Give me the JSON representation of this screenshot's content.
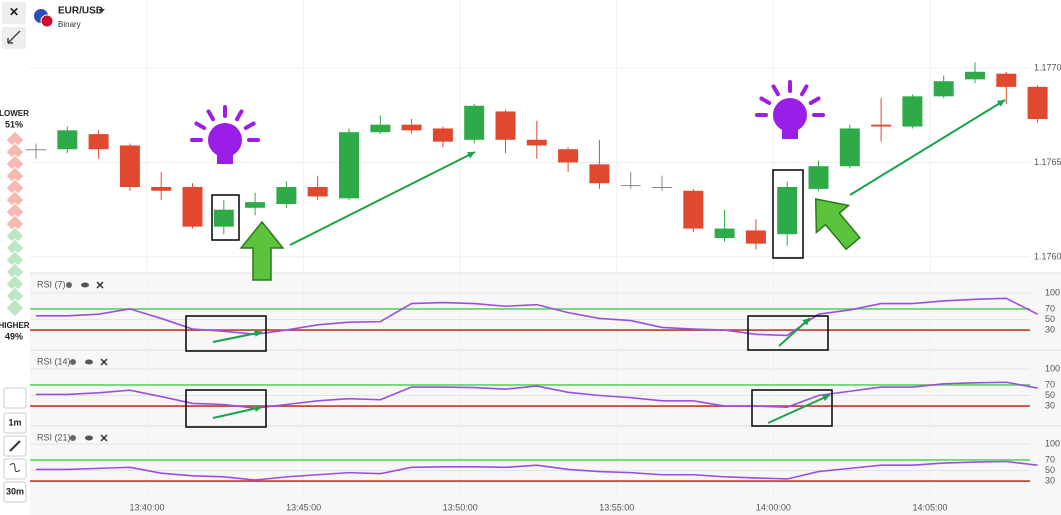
{
  "header": {
    "symbol": "EUR/USD",
    "mode": "Binary"
  },
  "sidebar": {
    "lower_label": "LOWER",
    "lower_pct": "51%",
    "higher_label": "HIGHER",
    "higher_pct": "49%",
    "tools": [
      "1m",
      "30m"
    ]
  },
  "price_chart": {
    "type": "candlestick",
    "up_color": "#2eaa48",
    "down_color": "#e0492f",
    "ylim": [
      1.17592,
      1.17736
    ],
    "yticks": [
      {
        "value": 1.177,
        "label": "1.1770"
      },
      1.1765,
      {
        "value": 1.176,
        "label": "1.1760"
      }
    ],
    "xticks": [
      "13:40:00",
      "13:45:00",
      "13:50:00",
      "13:55:00",
      "14:00:00",
      "14:05:00"
    ],
    "candles": [
      {
        "open": 1.17657,
        "high": 1.1766,
        "low": 1.17652,
        "close": 1.17657
      },
      {
        "open": 1.17657,
        "high": 1.17669,
        "low": 1.17655,
        "close": 1.17667
      },
      {
        "open": 1.17665,
        "high": 1.17667,
        "low": 1.17652,
        "close": 1.17657
      },
      {
        "open": 1.17659,
        "high": 1.1766,
        "low": 1.17635,
        "close": 1.17637
      },
      {
        "open": 1.17637,
        "high": 1.17645,
        "low": 1.1763,
        "close": 1.17635
      },
      {
        "open": 1.17637,
        "high": 1.17639,
        "low": 1.17615,
        "close": 1.17616
      },
      {
        "open": 1.17616,
        "high": 1.1763,
        "low": 1.17612,
        "close": 1.17625
      },
      {
        "open": 1.17626,
        "high": 1.17634,
        "low": 1.17622,
        "close": 1.17629
      },
      {
        "open": 1.17628,
        "high": 1.1764,
        "low": 1.17626,
        "close": 1.17637
      },
      {
        "open": 1.17637,
        "high": 1.17643,
        "low": 1.1763,
        "close": 1.17632
      },
      {
        "open": 1.17631,
        "high": 1.17668,
        "low": 1.1763,
        "close": 1.17666
      },
      {
        "open": 1.17666,
        "high": 1.17675,
        "low": 1.17665,
        "close": 1.1767
      },
      {
        "open": 1.1767,
        "high": 1.17673,
        "low": 1.17665,
        "close": 1.17667
      },
      {
        "open": 1.17668,
        "high": 1.17669,
        "low": 1.17658,
        "close": 1.17661
      },
      {
        "open": 1.17662,
        "high": 1.17681,
        "low": 1.1766,
        "close": 1.1768
      },
      {
        "open": 1.17677,
        "high": 1.17678,
        "low": 1.17655,
        "close": 1.17662
      },
      {
        "open": 1.17662,
        "high": 1.17672,
        "low": 1.17652,
        "close": 1.17659
      },
      {
        "open": 1.17657,
        "high": 1.17658,
        "low": 1.17645,
        "close": 1.1765
      },
      {
        "open": 1.17649,
        "high": 1.17662,
        "low": 1.17636,
        "close": 1.17639
      },
      {
        "open": 1.17638,
        "high": 1.17645,
        "low": 1.17636,
        "close": 1.17638
      },
      {
        "open": 1.17637,
        "high": 1.17643,
        "low": 1.17635,
        "close": 1.17637
      },
      {
        "open": 1.17635,
        "high": 1.17636,
        "low": 1.17613,
        "close": 1.17615
      },
      {
        "open": 1.1761,
        "high": 1.17625,
        "low": 1.17608,
        "close": 1.17615
      },
      {
        "open": 1.17614,
        "high": 1.1762,
        "low": 1.17604,
        "close": 1.17607
      },
      {
        "open": 1.17612,
        "high": 1.1764,
        "low": 1.17606,
        "close": 1.17637
      },
      {
        "open": 1.17636,
        "high": 1.17651,
        "low": 1.17635,
        "close": 1.17648
      },
      {
        "open": 1.17648,
        "high": 1.1767,
        "low": 1.17647,
        "close": 1.17668
      },
      {
        "open": 1.1767,
        "high": 1.17684,
        "low": 1.17661,
        "close": 1.17669
      },
      {
        "open": 1.17669,
        "high": 1.17686,
        "low": 1.17668,
        "close": 1.17685
      },
      {
        "open": 1.17685,
        "high": 1.17696,
        "low": 1.17684,
        "close": 1.17693
      },
      {
        "open": 1.17694,
        "high": 1.17703,
        "low": 1.17692,
        "close": 1.17698
      },
      {
        "open": 1.17697,
        "high": 1.17698,
        "low": 1.17681,
        "close": 1.1769
      },
      {
        "open": 1.1769,
        "high": 1.17691,
        "low": 1.17671,
        "close": 1.17673
      }
    ]
  },
  "indicators": [
    {
      "name": "RSI (7)",
      "color": "#9b4fe0",
      "ylim": [
        0,
        100
      ],
      "yticks": [
        100,
        70,
        50,
        30
      ],
      "level_colors": {
        "70": "#5fd35f",
        "30": "#c0392b"
      },
      "values": [
        57,
        57,
        60,
        70,
        52,
        32,
        28,
        22,
        30,
        40,
        45,
        46,
        80,
        82,
        80,
        75,
        78,
        63,
        52,
        48,
        35,
        32,
        30,
        22,
        20,
        60,
        68,
        80,
        80,
        85,
        88,
        90,
        60
      ]
    },
    {
      "name": "RSI (14)",
      "color": "#9b4fe0",
      "ylim": [
        0,
        100
      ],
      "yticks": [
        100,
        70,
        50,
        30
      ],
      "level_colors": {
        "70": "#5fd35f",
        "30": "#c0392b"
      },
      "values": [
        52,
        52,
        55,
        60,
        48,
        35,
        33,
        26,
        33,
        40,
        44,
        42,
        66,
        66,
        65,
        62,
        68,
        56,
        50,
        46,
        40,
        40,
        30,
        30,
        28,
        50,
        58,
        66,
        66,
        72,
        74,
        75,
        64
      ]
    },
    {
      "name": "RSI (21)",
      "color": "#9b4fe0",
      "ylim": [
        0,
        100
      ],
      "yticks": [
        100,
        70,
        50,
        30
      ],
      "level_colors": {
        "70": "#5fd35f",
        "30": "#c0392b"
      },
      "values": [
        52,
        52,
        54,
        56,
        45,
        40,
        38,
        32,
        38,
        42,
        46,
        44,
        56,
        57,
        57,
        56,
        60,
        52,
        48,
        46,
        42,
        42,
        38,
        36,
        34,
        48,
        54,
        60,
        60,
        64,
        66,
        67,
        60
      ]
    }
  ]
}
